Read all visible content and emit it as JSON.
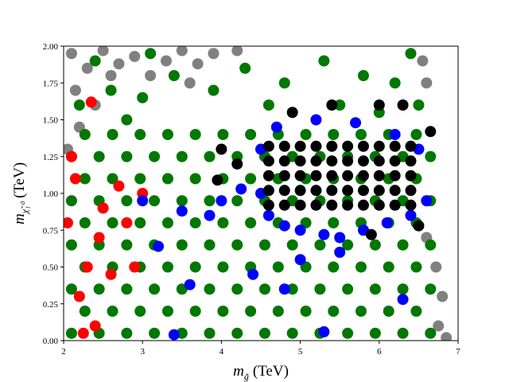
{
  "chart_data": {
    "type": "scatter",
    "x_label": {
      "symbol": "m",
      "subscript": "g̃",
      "unit": "(TeV)"
    },
    "y_label": {
      "symbol": "m",
      "subscript": "χ̃₁⁰",
      "unit": "(TeV)"
    },
    "xlim": [
      2,
      7
    ],
    "ylim": [
      0,
      2
    ],
    "xticks": [
      2,
      3,
      4,
      5,
      6,
      7
    ],
    "yticks": [
      {
        "value": 0,
        "label": "0.00"
      },
      0.25,
      {
        "value": 0.5,
        "label": "0.50"
      },
      0.75,
      {
        "value": 1,
        "label": "1.00"
      },
      1.25,
      {
        "value": 1.5,
        "label": "1.50"
      },
      1.75,
      {
        "value": 2,
        "label": "2.00"
      }
    ],
    "series": [
      {
        "color": "#808080",
        "x": [
          2.1,
          2.3,
          2.5,
          2.7,
          2.9,
          3.1,
          3.3,
          3.5,
          3.7,
          3.9,
          2.15,
          2.4,
          2.2,
          2.6,
          6.75,
          6.8,
          6.72,
          6.85,
          6.6,
          6.55,
          6.6,
          4.2,
          2.05,
          3.6
        ],
        "y": [
          1.95,
          1.85,
          1.97,
          1.88,
          1.93,
          1.8,
          1.9,
          1.97,
          1.88,
          1.95,
          1.7,
          1.6,
          1.45,
          1.8,
          0.1,
          0.3,
          0.5,
          0.02,
          0.7,
          1.9,
          1.75,
          1.97,
          1.3,
          1.75
        ]
      },
      {
        "color": "#007800",
        "x": [
          2.1,
          2.45,
          2.8,
          3.15,
          3.5,
          3.85,
          4.2,
          4.55,
          4.9,
          5.25,
          5.6,
          5.95,
          6.3,
          6.65,
          2.27,
          2.62,
          2.97,
          3.32,
          3.67,
          4.02,
          4.37,
          4.72,
          5.07,
          5.42,
          5.77,
          6.12,
          6.47,
          2.1,
          2.45,
          2.8,
          3.15,
          3.5,
          3.85,
          4.2,
          4.55,
          4.9,
          5.25,
          5.6,
          5.95,
          6.3,
          6.65,
          2.27,
          2.62,
          2.97,
          3.32,
          3.67,
          4.02,
          4.37,
          4.72,
          5.07,
          5.42,
          5.77,
          6.12,
          6.47,
          2.1,
          2.45,
          2.8,
          3.15,
          3.5,
          3.85,
          4.2,
          4.55,
          4.9,
          5.25,
          5.6,
          5.95,
          6.3,
          6.65,
          2.27,
          2.62,
          2.97,
          3.32,
          3.67,
          4.02,
          4.37,
          4.72,
          5.07,
          5.42,
          5.77,
          6.12,
          6.47,
          2.1,
          2.45,
          2.8,
          3.15,
          3.5,
          3.85,
          4.2,
          4.55,
          4.9,
          5.25,
          5.6,
          5.95,
          6.3,
          6.65,
          2.27,
          2.62,
          2.97,
          3.32,
          3.67,
          4.02,
          4.37,
          4.72,
          5.07,
          5.42,
          5.77,
          6.12,
          6.47,
          2.1,
          2.45,
          2.8,
          3.15,
          3.5,
          3.85,
          4.2,
          4.55,
          4.9,
          5.25,
          5.6,
          5.95,
          6.3,
          6.65,
          2.27,
          2.62,
          2.97,
          3.32,
          3.67,
          4.02,
          4.37,
          4.72,
          5.07,
          5.42,
          5.77,
          6.12,
          6.47,
          2.2,
          2.6,
          3.0,
          3.4,
          3.9,
          4.3,
          4.8,
          5.3,
          5.8,
          6.2,
          6.4,
          2.4,
          3.1,
          4.6,
          5.5,
          6.0,
          6.5,
          2.8
        ],
        "y": [
          0.05,
          0.05,
          0.05,
          0.05,
          0.05,
          0.05,
          0.05,
          0.05,
          0.05,
          0.05,
          0.05,
          0.05,
          0.05,
          0.05,
          0.2,
          0.2,
          0.2,
          0.2,
          0.2,
          0.2,
          0.2,
          0.2,
          0.2,
          0.2,
          0.2,
          0.2,
          0.2,
          0.35,
          0.35,
          0.35,
          0.35,
          0.35,
          0.35,
          0.35,
          0.35,
          0.35,
          0.35,
          0.35,
          0.35,
          0.35,
          0.35,
          0.5,
          0.5,
          0.5,
          0.5,
          0.5,
          0.5,
          0.5,
          0.5,
          0.5,
          0.5,
          0.5,
          0.5,
          0.5,
          0.65,
          0.65,
          0.65,
          0.65,
          0.65,
          0.65,
          0.65,
          0.65,
          0.65,
          0.65,
          0.65,
          0.65,
          0.65,
          0.65,
          0.8,
          0.8,
          0.8,
          0.8,
          0.8,
          0.8,
          0.8,
          0.8,
          0.8,
          0.8,
          0.8,
          0.8,
          0.8,
          0.95,
          0.95,
          0.95,
          0.95,
          0.95,
          0.95,
          0.95,
          0.95,
          0.95,
          0.95,
          0.95,
          0.95,
          0.95,
          0.95,
          1.1,
          1.1,
          1.1,
          1.1,
          1.1,
          1.1,
          1.1,
          1.1,
          1.1,
          1.1,
          1.1,
          1.1,
          1.1,
          1.25,
          1.25,
          1.25,
          1.25,
          1.25,
          1.25,
          1.25,
          1.25,
          1.25,
          1.25,
          1.25,
          1.25,
          1.25,
          1.25,
          1.4,
          1.4,
          1.4,
          1.4,
          1.4,
          1.4,
          1.4,
          1.4,
          1.4,
          1.4,
          1.4,
          1.4,
          1.4,
          1.6,
          1.7,
          1.65,
          1.8,
          1.7,
          1.85,
          1.75,
          1.9,
          1.8,
          1.75,
          1.95,
          1.9,
          1.95,
          1.6,
          1.6,
          1.55,
          1.6,
          1.5
        ]
      },
      {
        "color": "#ff0000",
        "x": [
          2.1,
          2.05,
          2.3,
          2.2,
          2.4,
          2.6,
          2.8,
          2.5,
          2.35,
          2.15,
          2.9,
          2.7,
          2.25,
          3.0,
          2.45
        ],
        "y": [
          1.25,
          0.8,
          0.5,
          0.3,
          0.1,
          0.45,
          0.8,
          0.9,
          1.62,
          1.1,
          0.5,
          1.05,
          0.05,
          1.0,
          0.7
        ]
      },
      {
        "color": "#0000ff",
        "x": [
          4.5,
          4.6,
          4.8,
          5.0,
          5.3,
          5.5,
          5.8,
          6.1,
          6.4,
          6.6,
          4.5,
          4.7,
          5.2,
          5.7,
          6.2,
          6.5,
          3.5,
          3.6,
          3.4,
          3.85,
          4.0,
          4.4,
          4.8,
          5.3,
          5.5,
          3.0,
          3.2,
          5.0,
          4.25,
          6.3
        ],
        "y": [
          1.0,
          0.85,
          0.78,
          0.75,
          0.72,
          0.7,
          0.75,
          0.8,
          0.85,
          0.95,
          1.3,
          1.45,
          1.5,
          1.48,
          1.4,
          1.3,
          0.88,
          0.38,
          0.04,
          0.85,
          0.95,
          0.45,
          0.35,
          0.06,
          0.6,
          0.95,
          0.64,
          0.55,
          1.03,
          0.28
        ]
      },
      {
        "color": "#000000",
        "x": [
          4.6,
          4.8,
          5.0,
          5.2,
          5.4,
          5.6,
          5.8,
          6.0,
          6.2,
          6.4,
          4.6,
          4.8,
          5.0,
          5.2,
          5.4,
          5.6,
          5.8,
          6.0,
          6.2,
          6.4,
          4.6,
          4.8,
          5.0,
          5.2,
          5.4,
          5.6,
          5.8,
          6.0,
          6.2,
          6.4,
          4.6,
          4.8,
          5.0,
          5.2,
          5.4,
          5.6,
          5.8,
          6.0,
          6.2,
          6.4,
          4.6,
          4.8,
          5.0,
          5.2,
          5.4,
          5.6,
          5.8,
          6.0,
          6.2,
          6.4,
          4.0,
          4.9,
          5.4,
          6.0,
          6.3,
          6.65,
          3.95,
          6.5,
          5.9,
          4.2
        ],
        "y": [
          0.92,
          0.92,
          0.92,
          0.92,
          0.92,
          0.92,
          0.92,
          0.92,
          0.92,
          0.92,
          1.02,
          1.02,
          1.02,
          1.02,
          1.02,
          1.02,
          1.02,
          1.02,
          1.02,
          1.02,
          1.12,
          1.12,
          1.12,
          1.12,
          1.12,
          1.12,
          1.12,
          1.12,
          1.12,
          1.12,
          1.22,
          1.22,
          1.22,
          1.22,
          1.22,
          1.22,
          1.22,
          1.22,
          1.22,
          1.22,
          1.32,
          1.32,
          1.32,
          1.32,
          1.32,
          1.32,
          1.32,
          1.32,
          1.32,
          1.32,
          1.3,
          1.55,
          1.6,
          1.6,
          1.6,
          1.42,
          1.09,
          0.78,
          0.72,
          1.2
        ]
      }
    ]
  }
}
